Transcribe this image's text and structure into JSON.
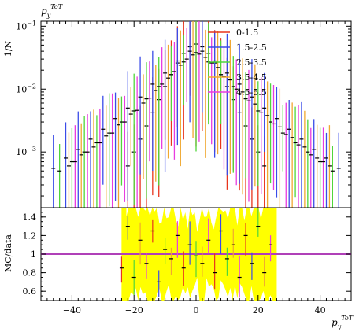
{
  "chart_data": [
    {
      "type": "scatter",
      "panel": "main",
      "title": "p_y^{ToT}",
      "title_base": "p",
      "title_sub": "y",
      "title_sup": "ToT",
      "ylabel": "1/N",
      "xlabel": "",
      "xlim": [
        -50,
        50
      ],
      "ylim": [
        0.00013,
        0.12
      ],
      "y_scale": "log",
      "y_tick_labels": [
        "10^-3",
        "10^-2",
        "10^-1"
      ],
      "y_tick_values": [
        0.001,
        0.01,
        0.1
      ],
      "grid": false,
      "legend_position": "top-right",
      "series": [
        {
          "name": "0-1.5",
          "color": "#e8341c",
          "x": [
            -22,
            -20,
            -18,
            -16,
            -14,
            -12,
            -10,
            -8,
            -6,
            -4,
            -2,
            0,
            2,
            4,
            6,
            8,
            10,
            12,
            14,
            16,
            18,
            20,
            22
          ],
          "y": [
            0.0006,
            0.001,
            0.0016,
            0.0026,
            0.0042,
            0.0068,
            0.011,
            0.017,
            0.026,
            0.037,
            0.047,
            0.052,
            0.047,
            0.037,
            0.026,
            0.017,
            0.011,
            0.0068,
            0.0042,
            0.0026,
            0.0016,
            0.001,
            0.0006
          ]
        },
        {
          "name": "1.5-2.5",
          "color": "#3a4be8",
          "x": [
            -46,
            -42,
            -38,
            -34,
            -30,
            -26,
            -22,
            -18,
            -14,
            -10,
            -6,
            -2,
            2,
            6,
            10,
            14,
            18,
            22,
            26,
            30,
            34,
            38,
            42,
            46
          ],
          "y": [
            0.00055,
            0.0008,
            0.0011,
            0.0016,
            0.0023,
            0.0034,
            0.005,
            0.0075,
            0.012,
            0.018,
            0.028,
            0.04,
            0.04,
            0.028,
            0.018,
            0.012,
            0.0075,
            0.005,
            0.0034,
            0.0023,
            0.0016,
            0.0011,
            0.0008,
            0.00055
          ]
        },
        {
          "name": "2.5-3.5",
          "color": "#4fd63a",
          "x": [
            -44,
            -40,
            -36,
            -32,
            -28,
            -24,
            -20,
            -16,
            -12,
            -8,
            -4,
            0,
            4,
            8,
            12,
            16,
            20,
            24,
            28,
            32,
            36,
            40,
            44
          ],
          "y": [
            0.0005,
            0.0007,
            0.001,
            0.0014,
            0.002,
            0.003,
            0.0045,
            0.007,
            0.011,
            0.017,
            0.027,
            0.038,
            0.027,
            0.017,
            0.011,
            0.007,
            0.0045,
            0.003,
            0.002,
            0.0014,
            0.001,
            0.0007,
            0.0005
          ]
        },
        {
          "name": "3.5-4.5",
          "color": "#f0a830",
          "x": [
            -41,
            -37,
            -33,
            -29,
            -25,
            -21,
            -17,
            -13,
            -9,
            -5,
            -1,
            3,
            7,
            11,
            15,
            19,
            23,
            27,
            31,
            35,
            39,
            43
          ],
          "y": [
            0.0006,
            0.0009,
            0.0012,
            0.0018,
            0.0027,
            0.004,
            0.006,
            0.0095,
            0.015,
            0.024,
            0.035,
            0.032,
            0.022,
            0.014,
            0.009,
            0.0058,
            0.0038,
            0.0025,
            0.0017,
            0.0012,
            0.0008,
            0.0006
          ]
        },
        {
          "name": "4.5-5.5",
          "color": "#e83ce0",
          "x": [
            -39,
            -35,
            -31,
            -27,
            -23,
            -19,
            -15,
            -11,
            -7,
            -3,
            1,
            5,
            9,
            13,
            17,
            21,
            25,
            29,
            33,
            37,
            41
          ],
          "y": [
            0.0007,
            0.001,
            0.0014,
            0.002,
            0.003,
            0.0046,
            0.0072,
            0.012,
            0.019,
            0.03,
            0.036,
            0.026,
            0.016,
            0.01,
            0.0065,
            0.0042,
            0.0028,
            0.0019,
            0.0013,
            0.0009,
            0.0007
          ]
        }
      ]
    },
    {
      "type": "scatter",
      "panel": "ratio",
      "ylabel": "MC/data",
      "xlabel": "p_y^{ToT}",
      "xlabel_base": "p",
      "xlabel_sub": "y",
      "xlabel_sup": "ToT",
      "xlim": [
        -50,
        50
      ],
      "ylim": [
        0.5,
        1.5
      ],
      "x_ticks": [
        -40,
        -20,
        0,
        20,
        40
      ],
      "y_ticks": [
        0.6,
        0.8,
        1,
        1.2,
        1.4
      ],
      "reference_line": 1,
      "reference_color": "#b040b8",
      "band_color": "#ffff00",
      "band_xlim": [
        -24,
        26
      ],
      "grid": false,
      "series": [
        {
          "name": "ratio",
          "color": "#e83ce0",
          "x": [
            -24,
            -22,
            -20,
            -18,
            -16,
            -14,
            -12,
            -10,
            -8,
            -6,
            -4,
            -2,
            0,
            2,
            4,
            6,
            8,
            10,
            12,
            14,
            16,
            18,
            20,
            22,
            24
          ],
          "y": [
            0.85,
            1.3,
            0.75,
            1.15,
            0.9,
            1.25,
            0.7,
            1.05,
            0.95,
            1.2,
            0.85,
            1.1,
            0.98,
            0.9,
            1.15,
            0.8,
            1.25,
            0.95,
            1.1,
            0.75,
            1.2,
            0.9,
            1.3,
            0.8,
            1.1
          ]
        }
      ]
    }
  ]
}
